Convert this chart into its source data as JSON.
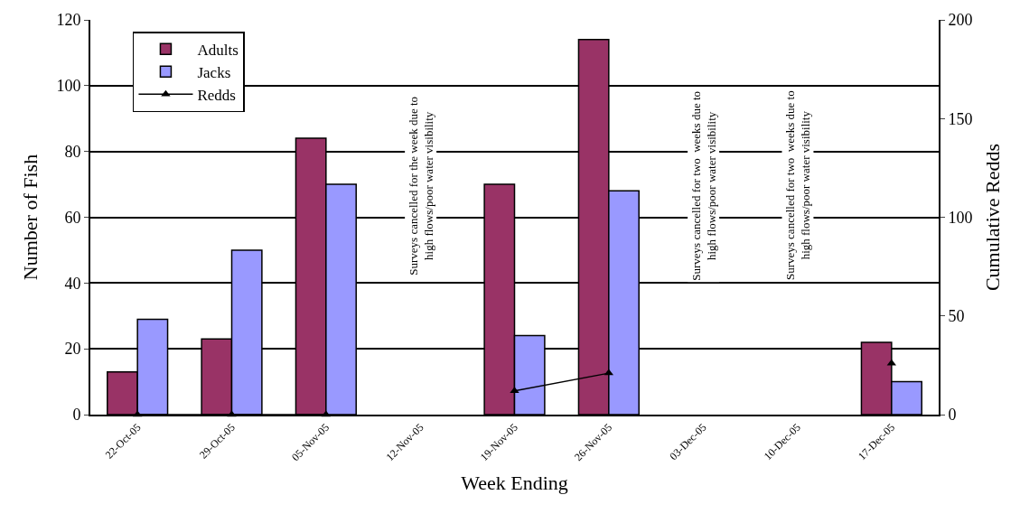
{
  "chart_data": {
    "type": "bar",
    "xlabel": "Week Ending",
    "ylabel": "Number of Fish",
    "y2label": "Cumulative Redds",
    "categories": [
      "22-Oct-05",
      "29-Oct-05",
      "05-Nov-05",
      "12-Nov-05",
      "19-Nov-05",
      "26-Nov-05",
      "03-Dec-05",
      "10-Dec-05",
      "17-Dec-05"
    ],
    "series": [
      {
        "name": "Adults",
        "color": "#993366",
        "values": [
          13,
          23,
          84,
          null,
          70,
          114,
          null,
          null,
          22
        ]
      },
      {
        "name": "Jacks",
        "color": "#9999ff",
        "values": [
          29,
          50,
          70,
          null,
          24,
          68,
          null,
          null,
          10
        ]
      },
      {
        "name": "Redds",
        "type": "line",
        "axis": "y2",
        "color": "#000000",
        "marker": "triangle",
        "values": [
          0,
          0,
          0,
          null,
          12,
          21,
          null,
          null,
          26
        ]
      }
    ],
    "ylim": [
      0,
      120
    ],
    "yticks": [
      0,
      20,
      40,
      60,
      80,
      100,
      120
    ],
    "y2lim": [
      0,
      200
    ],
    "y2ticks": [
      0,
      50,
      100,
      150,
      200
    ],
    "grid": "y",
    "legend": "top left",
    "annotations": [
      "Surveys cancelled for the week due to\nhigh flows/poor water visibility",
      "Surveys cancelled for two  weeks due to\nhigh flows/poor water visibility",
      "Surveys cancelled for two  weeks due to\nhigh flows/poor water visibility"
    ]
  }
}
